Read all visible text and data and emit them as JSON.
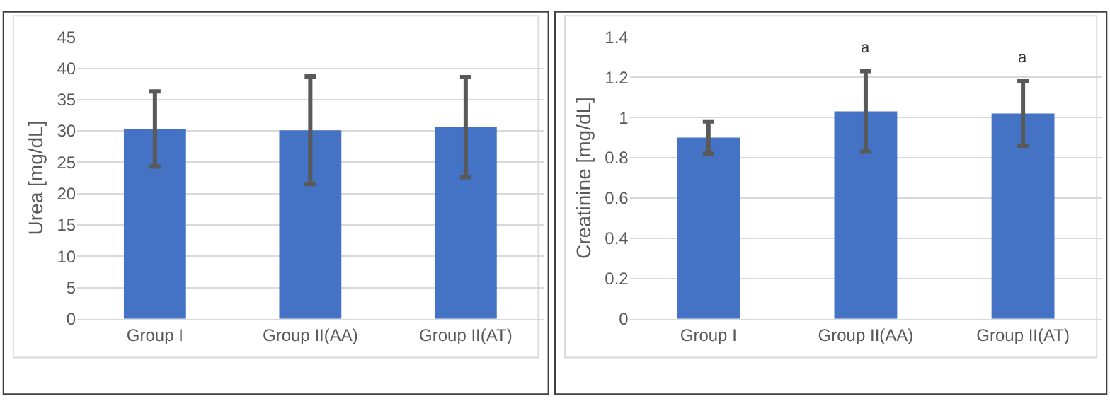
{
  "chart_data": [
    {
      "type": "bar",
      "ylabel": "Urea [mg/dL]",
      "categories": [
        "Group I",
        "Group II(AA)",
        "Group II(AT)"
      ],
      "values": [
        30.3,
        30.1,
        30.6
      ],
      "errors": [
        6.0,
        8.6,
        8.0
      ],
      "color": "#4472c4",
      "ylim": [
        0,
        45
      ],
      "yticks": [
        0,
        5,
        10,
        15,
        20,
        25,
        30,
        35,
        40,
        45
      ],
      "grid": "y"
    },
    {
      "type": "bar",
      "ylabel": "Creatinine [mg/dL]",
      "categories": [
        "Group I",
        "Group II(AA)",
        "Group II(AT)"
      ],
      "values": [
        0.9,
        1.03,
        1.02
      ],
      "errors": [
        0.08,
        0.2,
        0.16
      ],
      "color": "#4472c4",
      "ylim": [
        0,
        1.4
      ],
      "yticks": [
        0,
        0.2,
        0.4,
        0.6,
        0.8,
        1,
        1.2,
        1.4
      ],
      "grid": "y",
      "annotations": [
        "a",
        "a"
      ]
    }
  ]
}
